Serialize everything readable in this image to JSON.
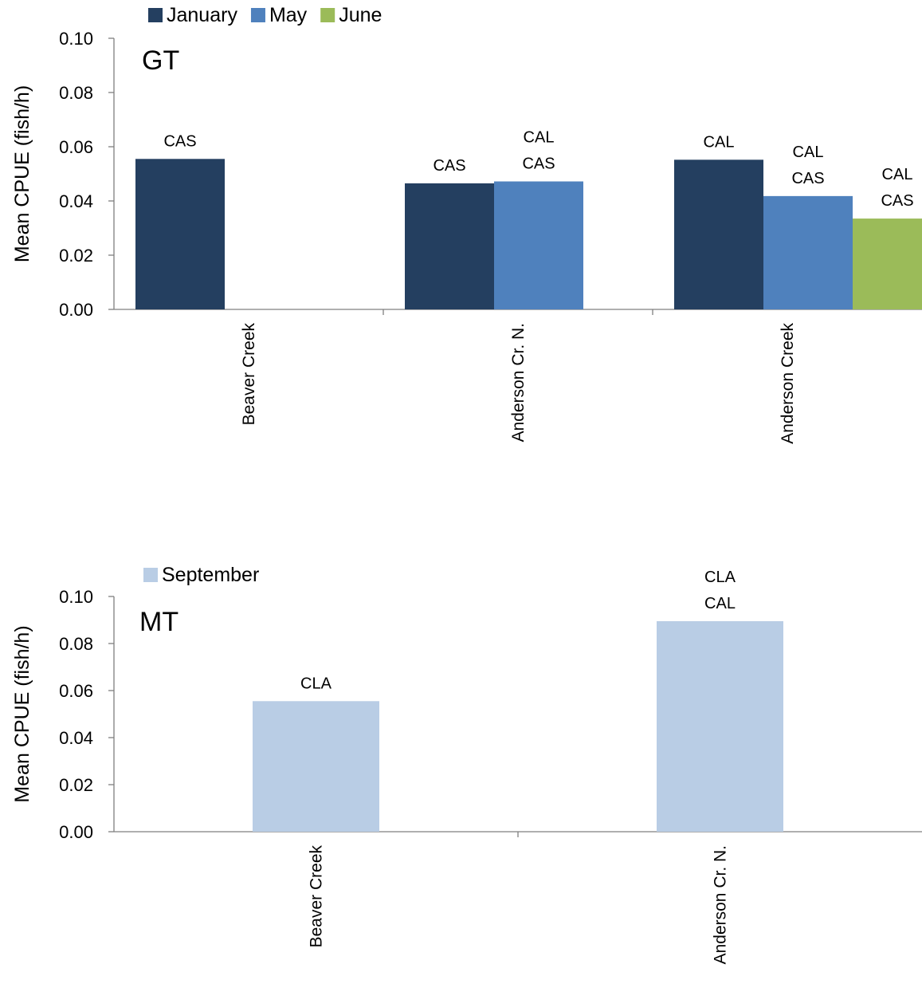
{
  "chart_data": [
    {
      "type": "bar",
      "panel_label": "GT",
      "ylabel": "Mean CPUE (fish/h)",
      "xlabel": "",
      "title": "",
      "ylim": [
        0,
        0.1
      ],
      "yticks": [
        "0.00",
        "0.02",
        "0.04",
        "0.06",
        "0.08",
        "0.10"
      ],
      "categories": [
        "Beaver Creek",
        "Anderson Cr. N.",
        "Anderson Creek"
      ],
      "legend_position": "top-left",
      "grid": false,
      "series": [
        {
          "name": "January",
          "color": "#243f60",
          "values": [
            0.0555,
            0.0465,
            0.0552
          ],
          "labels": [
            [
              "CAS"
            ],
            [
              "CAS"
            ],
            [
              "CAL"
            ]
          ]
        },
        {
          "name": "May",
          "color": "#4f81bd",
          "values": [
            null,
            0.0472,
            0.0418
          ],
          "labels": [
            null,
            [
              "CAL",
              "CAS"
            ],
            [
              "CAL",
              "CAS"
            ]
          ]
        },
        {
          "name": "June",
          "color": "#9bbb59",
          "values": [
            null,
            null,
            0.0335
          ],
          "labels": [
            null,
            null,
            [
              "CAL",
              "CAS"
            ]
          ]
        }
      ]
    },
    {
      "type": "bar",
      "panel_label": "MT",
      "ylabel": "Mean CPUE (fish/h)",
      "xlabel": "",
      "title": "",
      "ylim": [
        0,
        0.1
      ],
      "yticks": [
        "0.00",
        "0.02",
        "0.04",
        "0.06",
        "0.08",
        "0.10"
      ],
      "categories": [
        "Beaver Creek",
        "Anderson Cr. N."
      ],
      "legend_position": "top-left",
      "grid": false,
      "series": [
        {
          "name": "September",
          "color": "#b9cde5",
          "values": [
            0.0555,
            0.0895
          ],
          "labels": [
            [
              "CLA"
            ],
            [
              "CLA",
              "CAL"
            ]
          ]
        }
      ]
    }
  ]
}
